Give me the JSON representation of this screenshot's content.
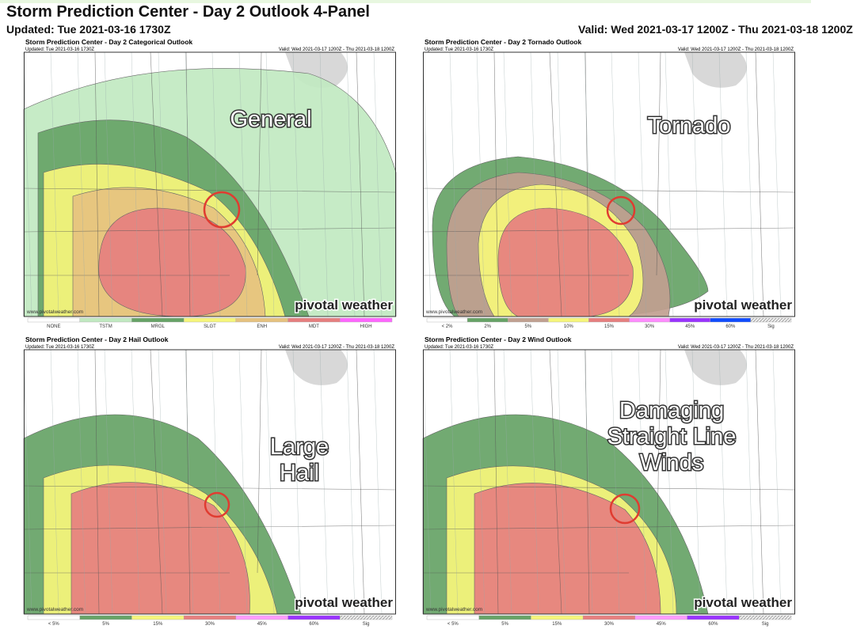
{
  "header": {
    "title": "Storm Prediction Center - Day 2 Outlook 4-Panel",
    "updated": "Updated: Tue 2021-03-16 1730Z",
    "valid": "Valid: Wed 2021-03-17 1200Z - Thu 2021-03-18 1200Z"
  },
  "panels": [
    {
      "title": "Storm Prediction Center - Day 2 Categorical Outlook",
      "updated": "Updated: Tue 2021-03-16 1730Z",
      "valid": "Valid: Wed 2021-03-17 1200Z - Thu 2021-03-18 1200Z",
      "overlay": [
        "General"
      ],
      "site": "www.pivotalweather.com",
      "brand": "pivotal weather",
      "legend": [
        "NONE",
        "TSTM",
        "MRGL",
        "SLGT",
        "ENH",
        "MDT",
        "HIGH"
      ]
    },
    {
      "title": "Storm Prediction Center - Day 2 Tornado Outlook",
      "updated": "Updated: Tue 2021-03-16 1730Z",
      "valid": "Valid: Wed 2021-03-17 1200Z - Thu 2021-03-18 1200Z",
      "overlay": [
        "Tornado"
      ],
      "site": "www.pivotalweather.com",
      "brand": "pivotal weather",
      "legend": [
        "< 2%",
        "2%",
        "5%",
        "10%",
        "15%",
        "30%",
        "45%",
        "60%",
        "Sig"
      ]
    },
    {
      "title": "Storm Prediction Center - Day 2 Hail Outlook",
      "updated": "Updated: Tue 2021-03-16 1730Z",
      "valid": "Valid: Wed 2021-03-17 1200Z - Thu 2021-03-18 1200Z",
      "overlay": [
        "Large",
        "Hail"
      ],
      "site": "www.pivotalweather.com",
      "brand": "pivotal weather",
      "legend": [
        "< 5%",
        "5%",
        "15%",
        "30%",
        "45%",
        "60%",
        "Sig"
      ]
    },
    {
      "title": "Storm Prediction Center - Day 2 Wind Outlook",
      "updated": "Updated: Tue 2021-03-16 1730Z",
      "valid": "Valid: Wed 2021-03-17 1200Z - Thu 2021-03-18 1200Z",
      "overlay": [
        "Damaging",
        "Straight Line",
        "Winds"
      ],
      "site": "www.pivotalweather.com",
      "brand": "pivotal weather",
      "legend": [
        "< 5%",
        "5%",
        "15%",
        "30%",
        "45%",
        "60%",
        "Sig"
      ]
    }
  ]
}
